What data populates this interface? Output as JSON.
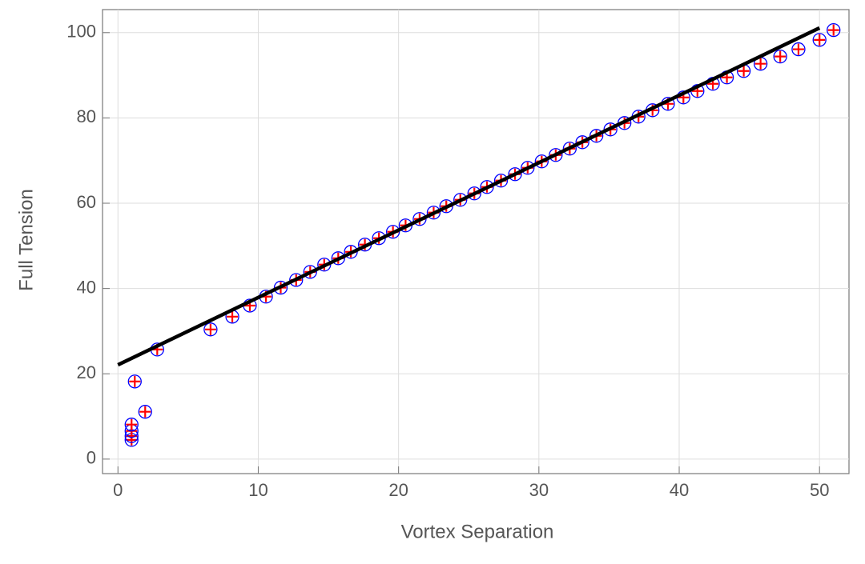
{
  "chart_data": {
    "type": "scatter",
    "x_label": "Vortex Separation",
    "y_label": "Full Tension",
    "xlim": [
      -1.1,
      52.1
    ],
    "ylim": [
      -3.4,
      105.4
    ],
    "xticks": [
      0,
      10,
      20,
      30,
      40,
      50
    ],
    "yticks": [
      0,
      20,
      40,
      60,
      80,
      100
    ],
    "grid": true,
    "series": [
      {
        "type": "scatter",
        "color": "#0000ff",
        "marker_color": "#ff0000",
        "x": [
          0.97,
          0.97,
          0.97,
          0.97,
          1.2,
          1.94,
          2.8,
          6.6,
          8.15,
          9.4,
          10.55,
          11.6,
          12.7,
          13.7,
          14.7,
          15.7,
          16.6,
          17.6,
          18.6,
          19.6,
          20.5,
          21.5,
          22.5,
          23.4,
          24.4,
          25.4,
          26.3,
          27.3,
          28.3,
          29.2,
          30.2,
          31.2,
          32.2,
          33.1,
          34.1,
          35.1,
          36.1,
          37.1,
          38.1,
          39.2,
          40.3,
          41.3,
          42.4,
          43.4,
          44.6,
          45.8,
          47.2,
          48.5,
          50.0,
          51.0
        ],
        "values": [
          4.5,
          5.4,
          6.6,
          8.1,
          18.2,
          11.1,
          25.7,
          30.4,
          33.4,
          36.0,
          38.1,
          40.2,
          42.0,
          43.9,
          45.6,
          47.1,
          48.6,
          50.3,
          51.8,
          53.3,
          54.8,
          56.3,
          57.8,
          59.3,
          60.8,
          62.3,
          63.8,
          65.3,
          66.8,
          68.3,
          69.8,
          71.3,
          72.8,
          74.3,
          75.8,
          77.3,
          78.8,
          80.3,
          81.8,
          83.3,
          84.8,
          86.3,
          88.0,
          89.5,
          91.0,
          92.7,
          94.4,
          96.1,
          98.3,
          100.6
        ]
      },
      {
        "type": "line",
        "color": "#000000",
        "x": [
          0,
          50
        ],
        "values": [
          22.1,
          101.1
        ]
      }
    ]
  }
}
